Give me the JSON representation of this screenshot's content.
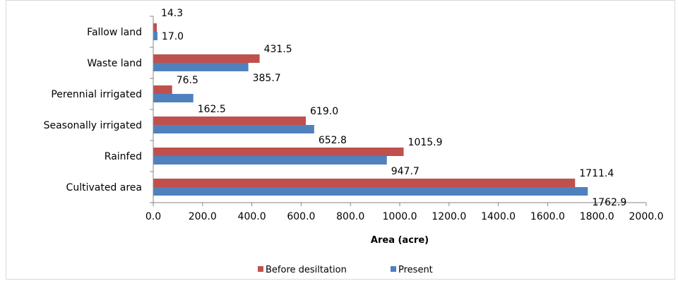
{
  "chart_data": {
    "type": "bar",
    "orientation": "horizontal",
    "categories": [
      "Cultivated area",
      "Rainfed",
      "Seasonally irrigated",
      "Perennial irrigated",
      "Waste land",
      "Fallow land"
    ],
    "series": [
      {
        "name": "Before desiltation",
        "color": "#c0504d",
        "values": [
          1711.4,
          1015.9,
          619.0,
          76.5,
          431.5,
          14.3
        ],
        "labels": [
          "1711.4",
          "1015.9",
          "619.0",
          "76.5",
          "431.5",
          "14.3"
        ]
      },
      {
        "name": "Present",
        "color": "#4f81bd",
        "values": [
          1762.9,
          947.7,
          652.8,
          162.5,
          385.7,
          17.0
        ],
        "labels": [
          "1762.9",
          "947.7",
          "652.8",
          "162.5",
          "385.7",
          "17.0"
        ]
      }
    ],
    "xlabel": "Area (acre)",
    "xlim": [
      0,
      2000
    ],
    "xticks": [
      0,
      200,
      400,
      600,
      800,
      1000,
      1200,
      1400,
      1600,
      1800,
      2000
    ],
    "xtick_labels": [
      "0.0",
      "200.0",
      "400.0",
      "600.0",
      "800.0",
      "1000.0",
      "1200.0",
      "1400.0",
      "1600.0",
      "1800.0",
      "2000.0"
    ],
    "grid": false,
    "legend_position": "bottom"
  }
}
